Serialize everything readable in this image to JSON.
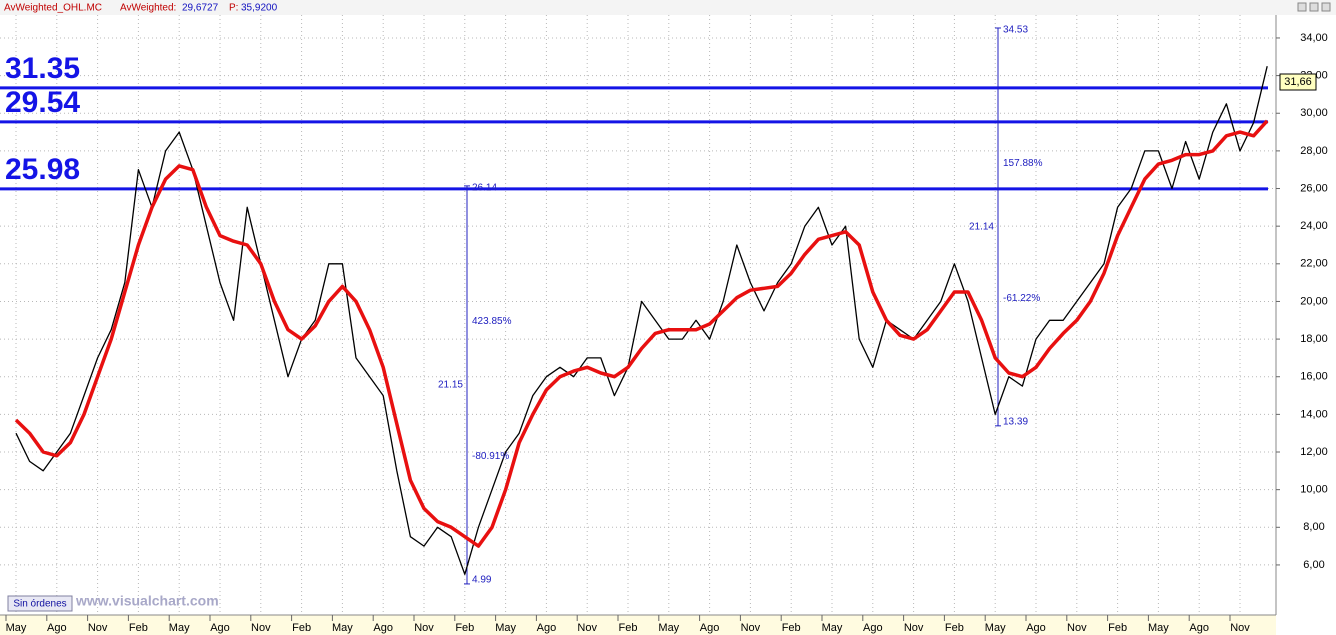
{
  "chart_data": {
    "type": "line",
    "header": {
      "symbol": "AvWeighted_OHL.MC",
      "label1": "AvWeighted:",
      "value1": "29,6727",
      "label2": "P:",
      "value2": "35,9200"
    },
    "categories": [
      "May",
      null,
      null,
      "Ago",
      null,
      null,
      "Nov",
      null,
      null,
      "Feb",
      null,
      null,
      "May",
      null,
      null,
      "Ago",
      null,
      null,
      "Nov",
      null,
      null,
      "Feb",
      null,
      null,
      "May",
      null,
      null,
      "Ago",
      null,
      null,
      "Nov",
      null,
      null,
      "Feb",
      null,
      null,
      "May",
      null,
      null,
      "Ago",
      null,
      null,
      "Nov",
      null,
      null,
      "Feb",
      null,
      null,
      "May",
      null,
      null,
      "Ago",
      null,
      null,
      "Nov",
      null,
      null,
      "Feb",
      null,
      null,
      "May",
      null,
      null,
      "Ago",
      null,
      null,
      "Nov",
      null,
      null,
      "Feb",
      null,
      null,
      "May",
      null,
      null,
      "Ago",
      null,
      null,
      "Nov",
      null,
      null,
      "Feb",
      null,
      null,
      "May",
      null,
      null,
      "Ago",
      null,
      null,
      "Nov",
      null,
      null
    ],
    "series": [
      {
        "color": "#000000",
        "width": 1.3,
        "values": [
          13,
          11.5,
          11,
          12,
          13,
          15,
          17,
          18.5,
          21,
          27,
          25,
          28,
          29,
          27,
          24,
          21,
          19,
          25,
          22,
          19,
          16,
          18,
          19,
          22,
          22,
          17,
          16,
          15,
          11,
          7.5,
          7,
          8,
          7.5,
          5.5,
          8,
          10,
          12,
          13,
          15,
          16,
          16.5,
          16,
          17,
          17,
          15,
          16.5,
          20,
          19,
          18,
          18,
          19,
          18,
          20,
          23,
          21,
          19.5,
          21,
          22,
          24,
          25,
          23,
          24,
          18,
          16.5,
          19,
          18.5,
          18,
          19,
          20,
          22,
          20,
          17,
          14,
          16,
          15.5,
          18,
          19,
          19,
          20,
          21,
          22,
          25,
          26,
          28,
          28,
          26,
          28.5,
          26.5,
          29,
          30.5,
          28,
          29.5,
          32.5
        ]
      },
      {
        "color": "#e81010",
        "width": 3.5,
        "values": [
          13.7,
          13,
          12,
          11.8,
          12.5,
          14,
          16,
          18,
          20.5,
          23,
          25,
          26.5,
          27.2,
          27,
          25,
          23.5,
          23.2,
          23,
          22,
          20,
          18.5,
          18,
          18.7,
          20,
          20.8,
          20,
          18.5,
          16.5,
          13.5,
          10.5,
          9,
          8.3,
          8,
          7.5,
          7,
          8,
          10,
          12.5,
          14,
          15.3,
          16,
          16.3,
          16.5,
          16.2,
          16,
          16.5,
          17.5,
          18.3,
          18.5,
          18.5,
          18.5,
          18.8,
          19.5,
          20.2,
          20.6,
          20.7,
          20.8,
          21.5,
          22.5,
          23.3,
          23.5,
          23.7,
          23,
          20.5,
          19,
          18.2,
          18,
          18.5,
          19.5,
          20.5,
          20.5,
          19,
          17,
          16.2,
          16,
          16.5,
          17.5,
          18.3,
          19,
          20,
          21.5,
          23.5,
          25,
          26.5,
          27.3,
          27.5,
          27.8,
          27.8,
          28,
          28.8,
          29,
          28.8,
          29.6
        ]
      }
    ],
    "levels": [
      {
        "value": 31.35,
        "label": "31.35"
      },
      {
        "value": 29.54,
        "label": "29.54"
      },
      {
        "value": 25.98,
        "label": "25.98"
      }
    ],
    "level_color": "#1414e6",
    "measures": [
      {
        "high": 26.14,
        "low": 4.99,
        "range": 21.15,
        "up": "423.85%",
        "down": "-80.91%"
      },
      {
        "high": 34.53,
        "low": 13.39,
        "range": 21.14,
        "up": "157.88%",
        "down": "-61.22%"
      }
    ],
    "last_price": {
      "value": 31.66,
      "label": "31,66"
    },
    "ylim": [
      3.34,
      35.22
    ],
    "yticks": [
      {
        "value": 6,
        "label": "6,00"
      },
      {
        "value": 8,
        "label": "8,00"
      },
      {
        "value": 10,
        "label": "10,00"
      },
      {
        "value": 12,
        "label": "12,00"
      },
      {
        "value": 14,
        "label": "14,00"
      },
      {
        "value": 16,
        "label": "16,00"
      },
      {
        "value": 18,
        "label": "18,00"
      },
      {
        "value": 20,
        "label": "20,00"
      },
      {
        "value": 22,
        "label": "22,00"
      },
      {
        "value": 24,
        "label": "24,00"
      },
      {
        "value": 26,
        "label": "26,00"
      },
      {
        "value": 28,
        "label": "28,00"
      },
      {
        "value": 30,
        "label": "30,00"
      },
      {
        "value": 32,
        "label": "32,00"
      },
      {
        "value": 34,
        "label": "34,00"
      }
    ],
    "grid": true,
    "button": "Sin órdenes",
    "watermark": "www.visualchart.com"
  }
}
